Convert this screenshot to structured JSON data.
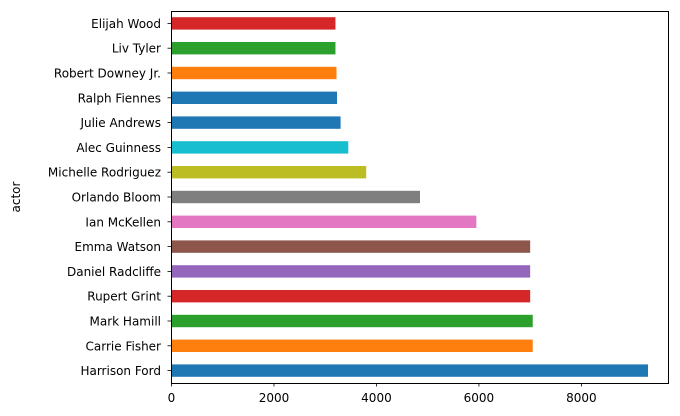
{
  "chart_data": {
    "type": "bar",
    "orientation": "horizontal",
    "ylabel": "actor",
    "xlabel": "",
    "xlim": [
      0,
      9700
    ],
    "xticks": [
      0,
      2000,
      4000,
      6000,
      8000
    ],
    "grid": false,
    "categories": [
      "Harrison Ford",
      "Carrie Fisher",
      "Mark Hamill",
      "Rupert Grint",
      "Daniel Radcliffe",
      "Emma Watson",
      "Ian McKellen",
      "Orlando Bloom",
      "Michelle Rodriguez",
      "Alec Guinness",
      "Julie Andrews",
      "Ralph Fiennes",
      "Robert Downey Jr.",
      "Liv Tyler",
      "Elijah Wood"
    ],
    "values": [
      9300,
      7050,
      7050,
      7000,
      7000,
      7000,
      5950,
      4850,
      3800,
      3450,
      3300,
      3230,
      3220,
      3200,
      3200
    ],
    "colors": [
      "#1f77b4",
      "#ff7f0e",
      "#2ca02c",
      "#d62728",
      "#9467bd",
      "#8c564b",
      "#e377c2",
      "#7f7f7f",
      "#bcbd22",
      "#17becf",
      "#1f77b4",
      "#1f77b4",
      "#ff7f0e",
      "#2ca02c",
      "#d62728"
    ]
  }
}
